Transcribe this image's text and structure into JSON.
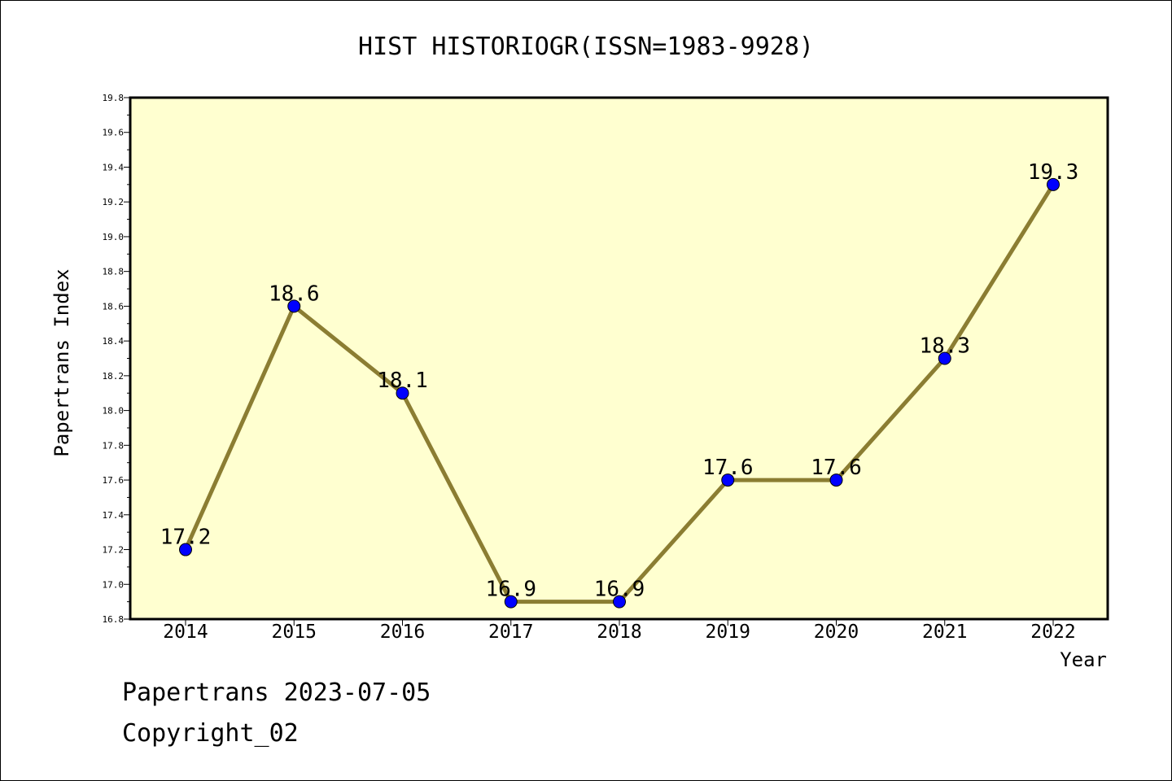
{
  "chart_data": {
    "type": "line",
    "title": "HIST HISTORIOGR(ISSN=1983-9928)",
    "xlabel": "Year",
    "ylabel": "Papertrans Index",
    "categories": [
      "2014",
      "2015",
      "2016",
      "2017",
      "2018",
      "2019",
      "2020",
      "2021",
      "2022"
    ],
    "series": [
      {
        "values": [
          17.2,
          18.6,
          18.1,
          16.9,
          16.9,
          17.6,
          17.6,
          18.3,
          19.3
        ]
      }
    ],
    "data_labels": [
      "17.2",
      "18.6",
      "18.1",
      "16.9",
      "16.9",
      "17.6",
      "17.6",
      "18.3",
      "19.3"
    ],
    "ylim": [
      16.8,
      19.8
    ],
    "yticks": [
      "16.8",
      "17.0",
      "17.2",
      "17.4",
      "17.6",
      "17.8",
      "18.0",
      "18.2",
      "18.4",
      "18.6",
      "18.8",
      "19.0",
      "19.2",
      "19.4",
      "19.6",
      "19.8"
    ],
    "grid": false,
    "colors": {
      "plot_background": "#ffffd0",
      "line": "#8b7d32",
      "marker": "#0000ff"
    }
  },
  "footer": {
    "line1": "Papertrans 2023-07-05",
    "line2": "Copyright_02"
  }
}
